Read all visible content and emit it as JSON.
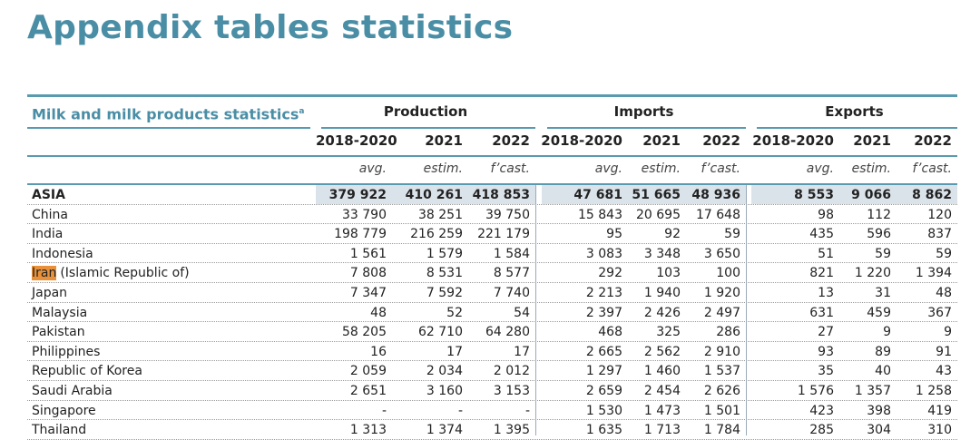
{
  "header": {
    "title": "Appendix tables statistics"
  },
  "table": {
    "caption": "Milk and milk products statistics",
    "caption_note": "a",
    "groups": [
      "Production",
      "Imports",
      "Exports"
    ],
    "years": [
      "2018-2020",
      "2021",
      "2022",
      "2018-2020",
      "2021",
      "2022",
      "2018-2020",
      "2021",
      "2022"
    ],
    "qualifiers": [
      "avg.",
      "estim.",
      "f’cast.",
      "avg.",
      "estim.",
      "f’cast.",
      "avg.",
      "estim.",
      "f’cast."
    ],
    "rows": [
      {
        "label": "ASIA",
        "values": [
          "379 922",
          "410 261",
          "418 853",
          "47 681",
          "51 665",
          "48 936",
          "8 553",
          "9 066",
          "8 862"
        ]
      },
      {
        "label": "China",
        "values": [
          "33 790",
          "38 251",
          "39 750",
          "15 843",
          "20 695",
          "17 648",
          "98",
          "112",
          "120"
        ]
      },
      {
        "label": "India",
        "values": [
          "198 779",
          "216 259",
          "221 179",
          "95",
          "92",
          "59",
          "435",
          "596",
          "837"
        ]
      },
      {
        "label": "Indonesia",
        "values": [
          "1 561",
          "1 579",
          "1 584",
          "3 083",
          "3 348",
          "3 650",
          "51",
          "59",
          "59"
        ]
      },
      {
        "label": [
          "Iran",
          "(Islamic Republic of)"
        ],
        "values": [
          "7 808",
          "8 531",
          "8 577",
          "292",
          "103",
          "100",
          "821",
          "1 220",
          "1 394"
        ]
      },
      {
        "label": "Japan",
        "values": [
          "7 347",
          "7 592",
          "7 740",
          "2 213",
          "1 940",
          "1 920",
          "13",
          "31",
          "48"
        ]
      },
      {
        "label": "Malaysia",
        "values": [
          "48",
          "52",
          "54",
          "2 397",
          "2 426",
          "2 497",
          "631",
          "459",
          "367"
        ]
      },
      {
        "label": "Pakistan",
        "values": [
          "58 205",
          "62 710",
          "64 280",
          "468",
          "325",
          "286",
          "27",
          "9",
          "9"
        ]
      },
      {
        "label": "Philippines",
        "values": [
          "16",
          "17",
          "17",
          "2 665",
          "2 562",
          "2 910",
          "93",
          "89",
          "91"
        ]
      },
      {
        "label": "Republic of Korea",
        "values": [
          "2 059",
          "2 034",
          "2 012",
          "1 297",
          "1 460",
          "1 537",
          "35",
          "40",
          "43"
        ]
      },
      {
        "label": "Saudi Arabia",
        "values": [
          "2 651",
          "3 160",
          "3 153",
          "2 659",
          "2 454",
          "2 626",
          "1 576",
          "1 357",
          "1 258"
        ]
      },
      {
        "label": "Singapore",
        "values": [
          "-",
          "-",
          "-",
          "1 530",
          "1 473",
          "1 501",
          "423",
          "398",
          "419"
        ]
      },
      {
        "label": "Thailand",
        "values": [
          "1 313",
          "1 374",
          "1 395",
          "1 635",
          "1 713",
          "1 784",
          "285",
          "304",
          "310"
        ]
      }
    ]
  }
}
